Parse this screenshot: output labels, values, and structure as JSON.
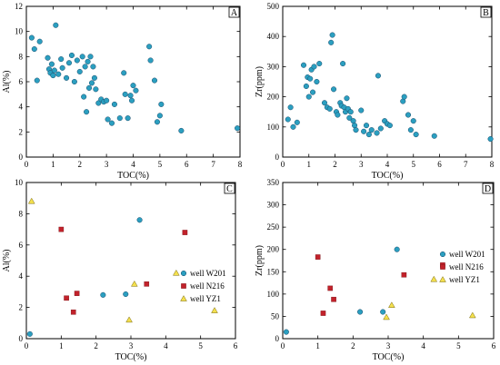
{
  "colors": {
    "W201": "#2b9fc0",
    "N216": "#c2222b",
    "YZ1": "#f4e04d",
    "edge": "#1a4a6a"
  },
  "chart_data": [
    {
      "type": "scatter",
      "panel_label": "A",
      "xlabel": "TOC(%)",
      "ylabel": "Al(%)",
      "xlim": [
        0,
        8
      ],
      "ylim": [
        0,
        12
      ],
      "xticks": [
        0,
        1,
        2,
        3,
        4,
        5,
        6,
        7,
        8
      ],
      "yticks": [
        0,
        2,
        4,
        6,
        8,
        10,
        12
      ],
      "series": [
        {
          "key": "W201",
          "marker": "circle",
          "points": [
            [
              0.2,
              9.5
            ],
            [
              0.3,
              8.6
            ],
            [
              0.4,
              6.1
            ],
            [
              0.5,
              9.2
            ],
            [
              0.8,
              7.9
            ],
            [
              0.85,
              7.0
            ],
            [
              0.9,
              6.7
            ],
            [
              0.95,
              7.4
            ],
            [
              1.0,
              6.5
            ],
            [
              1.05,
              6.9
            ],
            [
              1.1,
              10.5
            ],
            [
              1.2,
              6.6
            ],
            [
              1.3,
              7.8
            ],
            [
              1.35,
              7.1
            ],
            [
              1.5,
              6.3
            ],
            [
              1.6,
              7.5
            ],
            [
              1.7,
              8.1
            ],
            [
              1.8,
              6.0
            ],
            [
              1.9,
              7.7
            ],
            [
              2.0,
              6.8
            ],
            [
              2.1,
              8.0
            ],
            [
              2.15,
              4.8
            ],
            [
              2.2,
              7.2
            ],
            [
              2.25,
              3.6
            ],
            [
              2.3,
              7.6
            ],
            [
              2.35,
              5.5
            ],
            [
              2.4,
              8.0
            ],
            [
              2.45,
              5.9
            ],
            [
              2.5,
              7.2
            ],
            [
              2.55,
              6.3
            ],
            [
              2.6,
              5.4
            ],
            [
              2.7,
              4.3
            ],
            [
              2.8,
              4.6
            ],
            [
              2.9,
              4.4
            ],
            [
              3.0,
              4.5
            ],
            [
              3.05,
              3.0
            ],
            [
              3.2,
              2.7
            ],
            [
              3.3,
              4.2
            ],
            [
              3.5,
              3.1
            ],
            [
              3.65,
              6.7
            ],
            [
              3.7,
              5.0
            ],
            [
              3.8,
              3.1
            ],
            [
              3.9,
              4.9
            ],
            [
              3.95,
              4.5
            ],
            [
              4.0,
              5.7
            ],
            [
              4.1,
              5.3
            ],
            [
              4.6,
              8.8
            ],
            [
              4.65,
              7.7
            ],
            [
              4.8,
              6.1
            ],
            [
              4.9,
              2.8
            ],
            [
              5.0,
              3.3
            ],
            [
              5.05,
              4.2
            ],
            [
              5.8,
              2.1
            ],
            [
              7.9,
              2.3
            ]
          ]
        }
      ]
    },
    {
      "type": "scatter",
      "panel_label": "B",
      "xlabel": "TOC(%)",
      "ylabel": "Zr(ppm)",
      "xlim": [
        0,
        8
      ],
      "ylim": [
        0,
        500
      ],
      "xticks": [
        0,
        1,
        2,
        3,
        4,
        5,
        6,
        7,
        8
      ],
      "yticks": [
        0,
        100,
        200,
        300,
        400,
        500
      ],
      "series": [
        {
          "key": "W201",
          "marker": "circle",
          "points": [
            [
              0.2,
              125
            ],
            [
              0.3,
              165
            ],
            [
              0.4,
              100
            ],
            [
              0.55,
              115
            ],
            [
              0.8,
              305
            ],
            [
              0.9,
              235
            ],
            [
              0.95,
              265
            ],
            [
              1.0,
              200
            ],
            [
              1.05,
              260
            ],
            [
              1.1,
              290
            ],
            [
              1.15,
              215
            ],
            [
              1.2,
              300
            ],
            [
              1.3,
              250
            ],
            [
              1.4,
              310
            ],
            [
              1.6,
              180
            ],
            [
              1.7,
              165
            ],
            [
              1.8,
              160
            ],
            [
              1.85,
              380
            ],
            [
              1.9,
              405
            ],
            [
              1.95,
              225
            ],
            [
              2.05,
              150
            ],
            [
              2.1,
              140
            ],
            [
              2.2,
              180
            ],
            [
              2.25,
              170
            ],
            [
              2.3,
              310
            ],
            [
              2.35,
              165
            ],
            [
              2.4,
              150
            ],
            [
              2.45,
              195
            ],
            [
              2.5,
              160
            ],
            [
              2.55,
              130
            ],
            [
              2.6,
              150
            ],
            [
              2.7,
              120
            ],
            [
              2.75,
              105
            ],
            [
              2.8,
              90
            ],
            [
              3.0,
              155
            ],
            [
              3.1,
              85
            ],
            [
              3.2,
              105
            ],
            [
              3.3,
              75
            ],
            [
              3.4,
              90
            ],
            [
              3.6,
              80
            ],
            [
              3.65,
              270
            ],
            [
              3.75,
              95
            ],
            [
              3.9,
              120
            ],
            [
              4.0,
              110
            ],
            [
              4.1,
              105
            ],
            [
              4.6,
              185
            ],
            [
              4.65,
              200
            ],
            [
              4.8,
              140
            ],
            [
              4.9,
              90
            ],
            [
              5.0,
              120
            ],
            [
              5.1,
              75
            ],
            [
              5.8,
              70
            ],
            [
              7.95,
              60
            ]
          ]
        }
      ]
    },
    {
      "type": "scatter",
      "panel_label": "C",
      "xlabel": "TOC(%)",
      "ylabel": "Al(%)",
      "xlim": [
        0,
        6
      ],
      "ylim": [
        0,
        10
      ],
      "xticks": [
        0,
        1,
        2,
        3,
        4,
        5,
        6
      ],
      "yticks": [
        0,
        2,
        4,
        6,
        8,
        10
      ],
      "legend_position": "center-right",
      "series": [
        {
          "key": "W201",
          "name": "well W201",
          "marker": "circle",
          "points": [
            [
              0.1,
              0.3
            ],
            [
              2.2,
              2.8
            ],
            [
              2.85,
              2.85
            ],
            [
              3.25,
              7.6
            ]
          ]
        },
        {
          "key": "N216",
          "name": "well N216",
          "marker": "square",
          "points": [
            [
              1.0,
              7.0
            ],
            [
              1.15,
              2.6
            ],
            [
              1.35,
              1.7
            ],
            [
              1.45,
              2.9
            ],
            [
              3.45,
              3.5
            ],
            [
              4.55,
              6.8
            ]
          ]
        },
        {
          "key": "YZ1",
          "name": "well YZ1",
          "marker": "triangle",
          "points": [
            [
              0.15,
              8.8
            ],
            [
              2.95,
              1.2
            ],
            [
              3.1,
              3.5
            ],
            [
              4.3,
              4.2
            ],
            [
              5.4,
              1.8
            ]
          ]
        }
      ]
    },
    {
      "type": "scatter",
      "panel_label": "D",
      "xlabel": "TOC(%)",
      "ylabel": "Zr(ppm)",
      "xlim": [
        0,
        6
      ],
      "ylim": [
        0,
        350
      ],
      "xticks": [
        0,
        1,
        2,
        3,
        4,
        5,
        6
      ],
      "yticks": [
        0,
        50,
        100,
        150,
        200,
        250,
        300,
        350
      ],
      "legend_position": "center-right",
      "series": [
        {
          "key": "W201",
          "name": "well W201",
          "marker": "circle",
          "points": [
            [
              0.1,
              15
            ],
            [
              2.2,
              60
            ],
            [
              2.85,
              60
            ],
            [
              3.25,
              200
            ]
          ]
        },
        {
          "key": "N216",
          "name": "well N216",
          "marker": "square",
          "points": [
            [
              1.0,
              183
            ],
            [
              1.15,
              57
            ],
            [
              1.35,
              113
            ],
            [
              1.45,
              88
            ],
            [
              3.45,
              143
            ],
            [
              4.55,
              165
            ]
          ]
        },
        {
          "key": "YZ1",
          "name": "well YZ1",
          "marker": "triangle",
          "points": [
            [
              2.95,
              48
            ],
            [
              3.1,
              75
            ],
            [
              4.3,
              133
            ],
            [
              5.4,
              52
            ]
          ]
        }
      ]
    }
  ]
}
